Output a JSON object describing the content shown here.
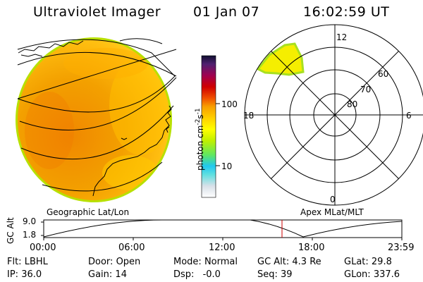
{
  "header": {
    "title": "Ultraviolet Imager",
    "date": "01 Jan 07",
    "time": "16:02:59 UT"
  },
  "colorbar": {
    "label_main": "photon cm",
    "label_exp1": "-2",
    "label_mid": "s",
    "label_exp2": "-1",
    "ticks": [
      "100",
      "10"
    ]
  },
  "polar_plot": {
    "mlt_labels": {
      "top": "12",
      "bottom": "0",
      "left": "18",
      "right": "6"
    },
    "lat_labels": [
      "60",
      "70",
      "80"
    ]
  },
  "panel_labels": {
    "left": "Geographic Lat/Lon",
    "right": "Apex MLat/MLT"
  },
  "altitude_plot": {
    "ylabel": "GC Alt",
    "y_ticks": [
      "9.0",
      "1.8"
    ],
    "x_ticks": [
      "00:00",
      "06:00",
      "12:00",
      "18:00",
      "23:59"
    ]
  },
  "info": {
    "flt_label": "Flt:",
    "flt_value": "LBHL",
    "ip_label": "IP:",
    "ip_value": "36.0",
    "door_label": "Door:",
    "door_value": "Open",
    "gain_label": "Gain:",
    "gain_value": "14",
    "mode_label": "Mode:",
    "mode_value": "Normal",
    "dsp_label": "Dsp:",
    "dsp_value": "-0.0",
    "gcalt_label": "GC Alt:",
    "gcalt_value": "4.3 Re",
    "seq_label": "Seq:",
    "seq_value": "39",
    "glat_label": "GLat:",
    "glat_value": "29.8",
    "glon_label": "GLon:",
    "glon_value": "337.6"
  },
  "colors": {
    "earth_main": "#f2a000",
    "earth_deep": "#f08a00",
    "earth_light": "#ffc800",
    "rim": "#b8e000",
    "aurora": "#f5f000",
    "cursor": "#cc0000"
  }
}
